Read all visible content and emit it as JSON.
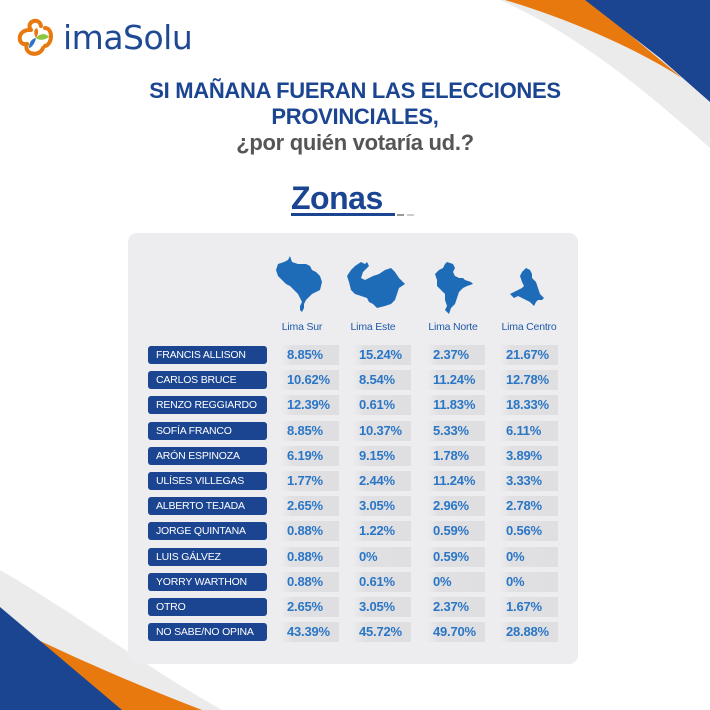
{
  "brand": {
    "logo_text": "imaSolu",
    "logo_icon": "imasolu-flower-logo-icon",
    "colors": {
      "navy": "#1b4591",
      "orange": "#e8790f",
      "light_gray": "#ebebec",
      "value_blue": "#2a76c6",
      "card_bg": "#ededf0"
    }
  },
  "title": {
    "line1": "SI MAÑANA FUERAN LAS ELECCIONES",
    "line2": "PROVINCIALES,",
    "line3": "¿por quién votaría ud.?"
  },
  "section": {
    "heading": "Zonas"
  },
  "table": {
    "columns": [
      {
        "label": "Lima Sur",
        "icon": "lima-sur-map-icon"
      },
      {
        "label": "Lima Este",
        "icon": "lima-este-map-icon"
      },
      {
        "label": "Lima Norte",
        "icon": "lima-norte-map-icon"
      },
      {
        "label": "Lima Centro",
        "icon": "lima-centro-map-icon"
      }
    ],
    "rows": [
      {
        "label": "FRANCIS ALLISON",
        "values": [
          "8.85%",
          "15.24%",
          "2.37%",
          "21.67%"
        ]
      },
      {
        "label": "CARLOS BRUCE",
        "values": [
          "10.62%",
          "8.54%",
          "11.24%",
          "12.78%"
        ]
      },
      {
        "label": "RENZO REGGIARDO",
        "values": [
          "12.39%",
          "0.61%",
          "11.83%",
          "18.33%"
        ]
      },
      {
        "label": "SOFÍA FRANCO",
        "values": [
          "8.85%",
          "10.37%",
          "5.33%",
          "6.11%"
        ]
      },
      {
        "label": "ARÓN ESPINOZA",
        "values": [
          "6.19%",
          "9.15%",
          "1.78%",
          "3.89%"
        ]
      },
      {
        "label": "ULÍSES VILLEGAS",
        "values": [
          "1.77%",
          "2.44%",
          "11.24%",
          "3.33%"
        ]
      },
      {
        "label": "ALBERTO TEJADA",
        "values": [
          "2.65%",
          "3.05%",
          "2.96%",
          "2.78%"
        ]
      },
      {
        "label": "JORGE QUINTANA",
        "values": [
          "0.88%",
          "1.22%",
          "0.59%",
          "0.56%"
        ]
      },
      {
        "label": "LUIS GÁLVEZ",
        "values": [
          "0.88%",
          "0%",
          "0.59%",
          "0%"
        ]
      },
      {
        "label": "YORRY WARTHON",
        "values": [
          "0.88%",
          "0.61%",
          "0%",
          "0%"
        ]
      },
      {
        "label": "OTRO",
        "values": [
          "2.65%",
          "3.05%",
          "2.37%",
          "1.67%"
        ]
      },
      {
        "label": "NO SABE/NO OPINA",
        "values": [
          "43.39%",
          "45.72%",
          "49.70%",
          "28.88%"
        ]
      }
    ]
  },
  "chart_data": {
    "type": "table",
    "title": "SI MAÑANA FUERAN LAS ELECCIONES PROVINCIALES, ¿por quién votaría ud.?",
    "subtitle": "Zonas",
    "categories": [
      "FRANCIS ALLISON",
      "CARLOS BRUCE",
      "RENZO REGGIARDO",
      "SOFÍA FRANCO",
      "ARÓN ESPINOZA",
      "ULÍSES VILLEGAS",
      "ALBERTO TEJADA",
      "JORGE QUINTANA",
      "LUIS GÁLVEZ",
      "YORRY WARTHON",
      "OTRO",
      "NO SABE/NO OPINA"
    ],
    "series": [
      {
        "name": "Lima Sur",
        "values": [
          8.85,
          10.62,
          12.39,
          8.85,
          6.19,
          1.77,
          2.65,
          0.88,
          0.88,
          0.88,
          2.65,
          43.39
        ]
      },
      {
        "name": "Lima Este",
        "values": [
          15.24,
          8.54,
          0.61,
          10.37,
          9.15,
          2.44,
          3.05,
          1.22,
          0,
          0.61,
          3.05,
          45.72
        ]
      },
      {
        "name": "Lima Norte",
        "values": [
          2.37,
          11.24,
          11.83,
          5.33,
          1.78,
          11.24,
          2.96,
          0.59,
          0.59,
          0,
          2.37,
          49.7
        ]
      },
      {
        "name": "Lima Centro",
        "values": [
          21.67,
          12.78,
          18.33,
          6.11,
          3.89,
          3.33,
          2.78,
          0.56,
          0,
          0,
          1.67,
          28.88
        ]
      }
    ],
    "unit": "%"
  }
}
